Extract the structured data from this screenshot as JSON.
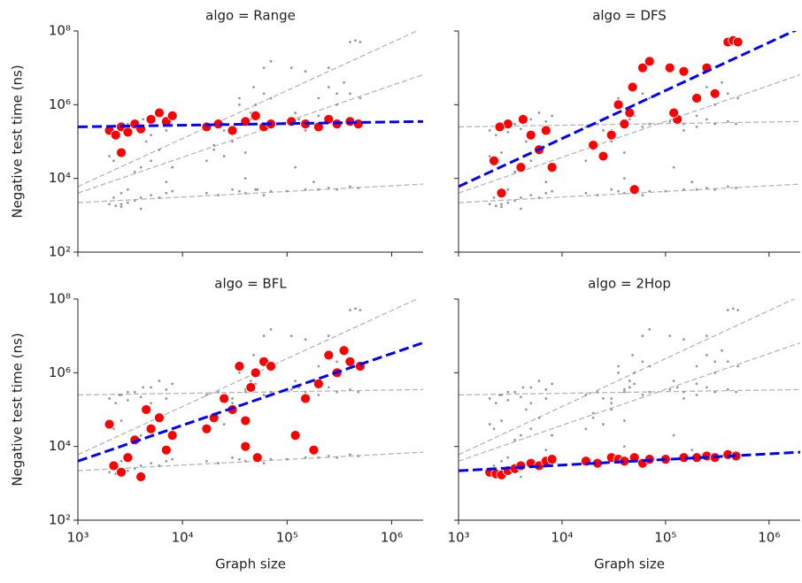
{
  "chart_data": [
    {
      "type": "scatter",
      "title": "algo = Range",
      "y_label": "Negative test time (ns)",
      "xscale": "log",
      "yscale": "log",
      "xlim": [
        1000,
        2000000
      ],
      "ylim": [
        100,
        100000000
      ],
      "yticks": [
        {
          "value": 100,
          "label": "10²"
        },
        {
          "value": 10000,
          "label": "10⁴"
        },
        {
          "value": 1000000,
          "label": "10⁶"
        },
        {
          "value": 100000000,
          "label": "10⁸"
        }
      ],
      "color": "#ff0000",
      "other_color": "#999999",
      "x": [
        2000,
        2300,
        2600,
        3000,
        3500,
        4000,
        5000,
        6000,
        7000,
        8000,
        17000,
        22000,
        30000,
        40000,
        50000,
        60000,
        70000,
        110000,
        150000,
        200000,
        250000,
        300000,
        400000,
        480000,
        2600
      ],
      "y": [
        200000,
        150000,
        250000,
        180000,
        300000,
        220000,
        400000,
        600000,
        350000,
        500000,
        250000,
        300000,
        200000,
        350000,
        500000,
        250000,
        300000,
        350000,
        300000,
        250000,
        400000,
        300000,
        350000,
        300000,
        50000
      ],
      "fit": {
        "x": [
          1000,
          2000000
        ],
        "y": [
          250000,
          350000
        ],
        "color": "#0000ff"
      }
    },
    {
      "type": "scatter",
      "title": "algo = DFS",
      "xscale": "log",
      "yscale": "log",
      "xlim": [
        1000,
        2000000
      ],
      "ylim": [
        100,
        100000000
      ],
      "color": "#ff0000",
      "other_color": "#999999",
      "x": [
        2200,
        2600,
        3000,
        4000,
        4200,
        5000,
        6000,
        7000,
        8000,
        2500,
        20000,
        25000,
        30000,
        35000,
        40000,
        45000,
        50000,
        60000,
        70000,
        48000,
        110000,
        130000,
        150000,
        200000,
        250000,
        300000,
        400000,
        450000,
        500000,
        120000
      ],
      "y": [
        30000,
        4000,
        300000,
        20000,
        400000,
        150000,
        60000,
        200000,
        20000,
        250000,
        80000,
        40000,
        150000,
        1000000,
        300000,
        600000,
        5000,
        10000000,
        15000000,
        3000000,
        10000000,
        400000,
        8000000,
        1500000,
        10000000,
        2000000,
        50000000,
        55000000,
        50000000,
        600000
      ],
      "fit": {
        "x": [
          1000,
          2000000
        ],
        "y": [
          6000,
          120000000
        ],
        "color": "#0000ff"
      }
    },
    {
      "type": "scatter",
      "title": "algo = BFL",
      "y_label": "Negative test time (ns)",
      "x_label": "Graph size",
      "xscale": "log",
      "yscale": "log",
      "xlim": [
        1000,
        2000000
      ],
      "ylim": [
        100,
        100000000
      ],
      "xticks": [
        {
          "value": 1000,
          "label": "10³"
        },
        {
          "value": 10000,
          "label": "10⁴"
        },
        {
          "value": 100000,
          "label": "10⁵"
        },
        {
          "value": 1000000,
          "label": "10⁶"
        }
      ],
      "yticks": [
        {
          "value": 100,
          "label": "10²"
        },
        {
          "value": 10000,
          "label": "10⁴"
        },
        {
          "value": 1000000,
          "label": "10⁶"
        },
        {
          "value": 100000000,
          "label": "10⁸"
        }
      ],
      "color": "#ff0000",
      "other_color": "#999999",
      "x": [
        2000,
        2200,
        2600,
        3000,
        3500,
        4000,
        4500,
        5000,
        6000,
        7000,
        8000,
        17000,
        20000,
        25000,
        30000,
        35000,
        40000,
        45000,
        50000,
        60000,
        70000,
        120000,
        150000,
        180000,
        200000,
        250000,
        300000,
        350000,
        400000,
        500000,
        40000,
        52000
      ],
      "y": [
        40000,
        3000,
        2000,
        5000,
        15000,
        1500,
        100000,
        30000,
        60000,
        8000,
        20000,
        30000,
        60000,
        200000,
        100000,
        1500000,
        50000,
        400000,
        1000000,
        2000000,
        1500000,
        20000,
        200000,
        8000,
        500000,
        3000000,
        1000000,
        4000000,
        2000000,
        1500000,
        10000,
        5000
      ],
      "fit": {
        "x": [
          1000,
          2000000
        ],
        "y": [
          4000,
          6500000
        ],
        "color": "#0000ff"
      }
    },
    {
      "type": "scatter",
      "title": "algo = 2Hop",
      "x_label": "Graph size",
      "xscale": "log",
      "yscale": "log",
      "xlim": [
        1000,
        2000000
      ],
      "ylim": [
        100,
        100000000
      ],
      "xticks": [
        {
          "value": 1000,
          "label": "10³"
        },
        {
          "value": 10000,
          "label": "10⁴"
        },
        {
          "value": 100000,
          "label": "10⁵"
        },
        {
          "value": 1000000,
          "label": "10⁶"
        }
      ],
      "color": "#ff0000",
      "other_color": "#999999",
      "x": [
        2000,
        2300,
        2600,
        3000,
        3500,
        4000,
        5000,
        6000,
        7000,
        8000,
        17000,
        22000,
        30000,
        35000,
        40000,
        50000,
        60000,
        70000,
        100000,
        150000,
        200000,
        250000,
        300000,
        400000,
        480000
      ],
      "y": [
        2000,
        1800,
        1700,
        2200,
        2500,
        3000,
        3500,
        3000,
        4000,
        4500,
        4000,
        3500,
        5000,
        4500,
        4000,
        5000,
        3500,
        4500,
        4500,
        5000,
        5000,
        5500,
        5000,
        6000,
        5500
      ],
      "fit": {
        "x": [
          1000,
          2000000
        ],
        "y": [
          2200,
          7000
        ],
        "color": "#0000ff"
      }
    }
  ]
}
